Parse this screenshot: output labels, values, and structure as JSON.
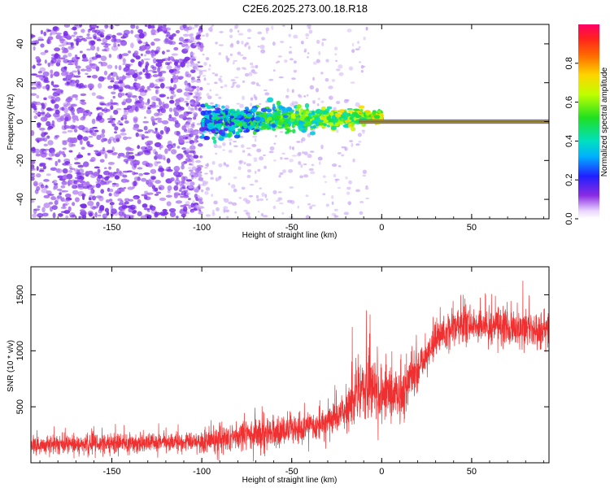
{
  "figure_title": "C2E6.2025.273.00.18.R18",
  "colors": {
    "snr_line": "#f03030",
    "axis": "#000000",
    "spec_low": "#7a2fe8",
    "spec_faint": "#c9a8f5"
  },
  "chart_data": [
    {
      "type": "heatmap",
      "title": "",
      "xlabel": "Height of straight line (km)",
      "ylabel": "Frequency (Hz)",
      "xlim": [
        -195,
        93
      ],
      "ylim": [
        -50,
        50
      ],
      "x_ticks": [
        -150,
        -100,
        -50,
        0,
        50
      ],
      "x_tick_labels": [
        "-150",
        "-100",
        "-50",
        "0",
        "50"
      ],
      "y_ticks": [
        -40,
        -20,
        0,
        20,
        40
      ],
      "y_tick_labels": [
        "-40",
        "-20",
        "0",
        "20",
        "40"
      ],
      "description_of_pattern": {
        "noise_region_x": [
          -195,
          -100
        ],
        "transition_region_x": [
          -100,
          -20
        ],
        "carrier_start_x": 0,
        "carrier_frequency": 0
      },
      "colorbar": {
        "label": "Normalized spectral amplitude",
        "range": [
          0,
          1
        ],
        "ticks": [
          0.0,
          0.2,
          0.4,
          0.6,
          0.8
        ],
        "tick_labels": [
          "0.0",
          "0.2",
          "0.4",
          "0.6",
          "0.8"
        ]
      }
    },
    {
      "type": "line",
      "title": "",
      "xlabel": "Height of straight line (km)",
      "ylabel": "SNR (10 * v/v)",
      "xlim": [
        -195,
        93
      ],
      "ylim": [
        0,
        1750
      ],
      "x_ticks": [
        -150,
        -100,
        -50,
        0,
        50
      ],
      "x_tick_labels": [
        "-150",
        "-100",
        "-50",
        "0",
        "50"
      ],
      "y_ticks": [
        500,
        1000,
        1500
      ],
      "y_tick_labels": [
        "500",
        "1000",
        "1500"
      ],
      "trend": [
        {
          "x": -195,
          "y": 160
        },
        {
          "x": -150,
          "y": 170
        },
        {
          "x": -120,
          "y": 180
        },
        {
          "x": -100,
          "y": 190
        },
        {
          "x": -80,
          "y": 230
        },
        {
          "x": -60,
          "y": 270
        },
        {
          "x": -40,
          "y": 310
        },
        {
          "x": -30,
          "y": 360
        },
        {
          "x": -20,
          "y": 470
        },
        {
          "x": -10,
          "y": 700
        },
        {
          "x": 0,
          "y": 620
        },
        {
          "x": 10,
          "y": 620
        },
        {
          "x": 20,
          "y": 850
        },
        {
          "x": 30,
          "y": 1100
        },
        {
          "x": 40,
          "y": 1230
        },
        {
          "x": 60,
          "y": 1230
        },
        {
          "x": 80,
          "y": 1200
        },
        {
          "x": 93,
          "y": 1170
        }
      ]
    }
  ]
}
